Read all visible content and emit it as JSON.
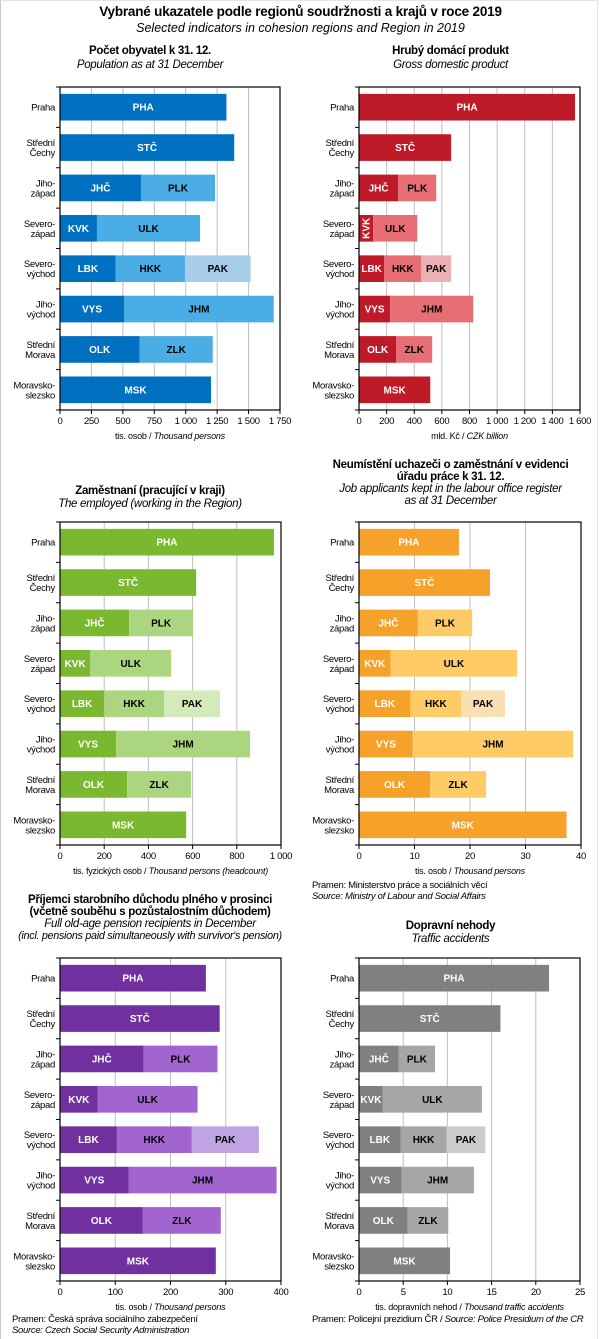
{
  "title": "Vybrané ukazatele podle regionů soudržnosti a krajů v roce 2019",
  "subtitle": "Selected indicators in cohesion regions and Region in 2019",
  "categories": [
    "Praha",
    "Střední Čechy",
    "Jiho-západ",
    "Severo-západ",
    "Severo-východ",
    "Jiho-východ",
    "Střední Morava",
    "Moravsko-slezsko"
  ],
  "category_lines": [
    [
      "Praha"
    ],
    [
      "Střední",
      "Čechy"
    ],
    [
      "Jiho-",
      "západ"
    ],
    [
      "Severo-",
      "západ"
    ],
    [
      "Severo-",
      "východ"
    ],
    [
      "Jiho-",
      "východ"
    ],
    [
      "Střední",
      "Morava"
    ],
    [
      "Moravsko-",
      "slezsko"
    ]
  ],
  "segment_codes": [
    [
      "PHA"
    ],
    [
      "STČ"
    ],
    [
      "JHČ",
      "PLK"
    ],
    [
      "KVK",
      "ULK"
    ],
    [
      "LBK",
      "HKK",
      "PAK"
    ],
    [
      "VYS",
      "JHM"
    ],
    [
      "OLK",
      "ZLK"
    ],
    [
      "MSK"
    ]
  ],
  "chart_data": [
    {
      "id": "population",
      "type": "bar",
      "stacked": true,
      "orientation": "horizontal",
      "title": "Počet obyvatel k 31. 12.",
      "title_en": "Population as at 31 December",
      "xlabel": "tis. osob",
      "xlabel_en": "Thousand persons",
      "xlim": [
        0,
        1750
      ],
      "xticks": [
        0,
        250,
        500,
        750,
        1000,
        1250,
        1500,
        1750
      ],
      "xtick_labels": [
        "0",
        "250",
        "500",
        "750",
        "1 000",
        "1 250",
        "1 500",
        "1 750"
      ],
      "grid": true,
      "colors": [
        "#0070c0",
        "#4aade5",
        "#a8cde8"
      ],
      "label_colors": [
        "#ffffff",
        "#000000",
        "#000000"
      ],
      "values": [
        [
          1324
        ],
        [
          1386
        ],
        [
          644,
          589
        ],
        [
          294,
          820
        ],
        [
          443,
          551,
          522
        ],
        [
          509,
          1191
        ],
        [
          632,
          583
        ],
        [
          1201
        ]
      ],
      "source": "",
      "source_en": ""
    },
    {
      "id": "gdp",
      "type": "bar",
      "stacked": true,
      "orientation": "horizontal",
      "title": "Hrubý domácí produkt",
      "title_en": "Gross domestic product",
      "xlabel": "mld. Kč",
      "xlabel_en": "CZK billion",
      "xlim": [
        0,
        1600
      ],
      "xticks": [
        0,
        200,
        400,
        600,
        800,
        1000,
        1200,
        1400,
        1600
      ],
      "xtick_labels": [
        "0",
        "200",
        "400",
        "600",
        "800",
        "1 000",
        "1 200",
        "1 400",
        "1 600"
      ],
      "grid": true,
      "colors": [
        "#be1a28",
        "#e86e76",
        "#ebb1b5"
      ],
      "label_colors": [
        "#ffffff",
        "#000000",
        "#000000"
      ],
      "values": [
        [
          1564
        ],
        [
          667
        ],
        [
          284,
          275
        ],
        [
          103,
          319
        ],
        [
          183,
          268,
          216
        ],
        [
          226,
          601
        ],
        [
          270,
          260
        ],
        [
          516
        ]
      ],
      "rotated_labels": [
        "KVK"
      ],
      "source": "",
      "source_en": ""
    },
    {
      "id": "employed",
      "type": "bar",
      "stacked": true,
      "orientation": "horizontal",
      "title": "Zaměstnaní (pracující v kraji)",
      "title_en": "The employed (working in the Region)",
      "xlabel": "tis. fyzických osob",
      "xlabel_en": "Thousand persons (headcount)",
      "xlim": [
        0,
        1000
      ],
      "xticks": [
        0,
        200,
        400,
        600,
        800,
        1000
      ],
      "xtick_labels": [
        "0",
        "200",
        "400",
        "600",
        "800",
        "1 000"
      ],
      "grid": true,
      "colors": [
        "#7ab82f",
        "#acd57f",
        "#d4ebb9"
      ],
      "label_colors": [
        "#ffffff",
        "#000000",
        "#000000"
      ],
      "values": [
        [
          968
        ],
        [
          616
        ],
        [
          313,
          289
        ],
        [
          137,
          366
        ],
        [
          200,
          271,
          253
        ],
        [
          254,
          606
        ],
        [
          304,
          289
        ],
        [
          571
        ]
      ],
      "source": "",
      "source_en": ""
    },
    {
      "id": "job_applicants",
      "type": "bar",
      "stacked": true,
      "orientation": "horizontal",
      "title": "Neumístění uchazeči o zaměstnání v evidenci úřadu práce k 31. 12.",
      "title_lines": [
        "Neumístění uchazeči o zaměstnání v evidenci",
        "úřadu práce k 31. 12."
      ],
      "title_en": "Job applicants kept in the labour office register as at 31 December",
      "title_en_lines": [
        "Job applicants kept in the labour office register",
        "as at 31 December"
      ],
      "xlabel": "tis. osob",
      "xlabel_en": "Thousand persons",
      "xlim": [
        0,
        40
      ],
      "xticks": [
        0,
        10,
        20,
        30,
        40
      ],
      "xtick_labels": [
        "0",
        "10",
        "20",
        "30",
        "40"
      ],
      "grid": true,
      "colors": [
        "#f5a12a",
        "#fecb67",
        "#fcdeb3"
      ],
      "label_colors": [
        "#ffffff",
        "#000000",
        "#000000"
      ],
      "values": [
        [
          18.0
        ],
        [
          23.6
        ],
        [
          10.6,
          9.8
        ],
        [
          5.7,
          22.8
        ],
        [
          9.3,
          9.1,
          7.9
        ],
        [
          9.7,
          28.9
        ],
        [
          12.8,
          10.1
        ],
        [
          37.4
        ]
      ],
      "source": "Pramen: Ministerstvo práce a sociálních věcí",
      "source_en": "Source: Ministry of Labour and Social Affairs"
    },
    {
      "id": "pensions",
      "type": "bar",
      "stacked": true,
      "orientation": "horizontal",
      "title": "Příjemci starobního důchodu plného v prosinci (včetně souběhu s pozůstalostním důchodem)",
      "title_lines": [
        "Příjemci starobního důchodu plného v prosinci",
        "(včetně souběhu s pozůstalostním důchodem)"
      ],
      "title_en": "Full old-age pension recipients in December (incl. pensions paid simultaneously with survivor's pension)",
      "title_en_lines": [
        "Full old-age pension recipients in December",
        "(incl. pensions paid simultaneously with survivor's pension)"
      ],
      "xlabel": "tis. osob",
      "xlabel_en": "Thousand persons",
      "xlim": [
        0,
        400
      ],
      "xticks": [
        0,
        100,
        200,
        300,
        400
      ],
      "xtick_labels": [
        "0",
        "100",
        "200",
        "300",
        "400"
      ],
      "grid": true,
      "colors": [
        "#7030a0",
        "#a265d0",
        "#bfa3e2"
      ],
      "label_colors": [
        "#ffffff",
        "#000000",
        "#000000"
      ],
      "values": [
        [
          264
        ],
        [
          289
        ],
        [
          151,
          134
        ],
        [
          68,
          181
        ],
        [
          103,
          135,
          122
        ],
        [
          124,
          268
        ],
        [
          150,
          141
        ],
        [
          282
        ]
      ],
      "source": "Pramen: Česká správa sociálního zabezpečení",
      "source_en": "Source: Czech Social Security Administration"
    },
    {
      "id": "traffic_accidents",
      "type": "bar",
      "stacked": true,
      "orientation": "horizontal",
      "title": "Dopravní nehody",
      "title_en": "Traffic accidents",
      "xlabel": "tis. dopravních nehod",
      "xlabel_en": "Thousand traffic accidents",
      "xlim": [
        0,
        25
      ],
      "xticks": [
        0,
        5,
        10,
        15,
        20,
        25
      ],
      "xtick_labels": [
        "0",
        "5",
        "10",
        "15",
        "20",
        "25"
      ],
      "grid": true,
      "colors": [
        "#808080",
        "#a6a6a6",
        "#cbcbcb"
      ],
      "label_colors": [
        "#ffffff",
        "#000000",
        "#000000"
      ],
      "values": [
        [
          21.5
        ],
        [
          16.0
        ],
        [
          4.5,
          4.1
        ],
        [
          2.7,
          11.2
        ],
        [
          4.7,
          5.2,
          4.4
        ],
        [
          4.8,
          8.2
        ],
        [
          5.5,
          4.6
        ],
        [
          10.3
        ]
      ],
      "source": "Pramen: Policejní prezidium ČR / ",
      "source_en": "Source: Police Presidium of the CR"
    }
  ]
}
